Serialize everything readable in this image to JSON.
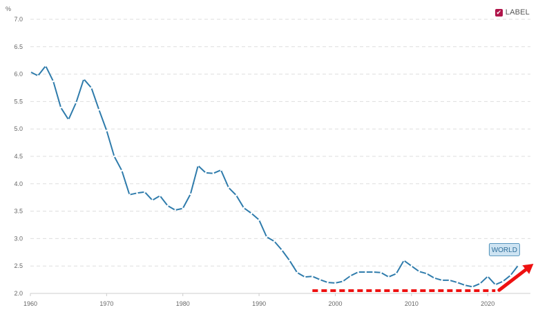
{
  "legend": {
    "label": "LABEL",
    "checked": true,
    "check_glyph": "✔"
  },
  "colors": {
    "line": "#2e7bab",
    "grid": "#dddddd",
    "callout_bg": "#cde3f2",
    "callout_border": "#2e7bab",
    "annotation": "#ee1111",
    "checkbox": "#b0154a"
  },
  "chart_data": {
    "type": "line",
    "unit_label": "%",
    "xlim": [
      1960,
      2024
    ],
    "ylim": [
      2.0,
      7.0
    ],
    "x_ticks": [
      1960,
      1970,
      1980,
      1990,
      2000,
      2010,
      2020
    ],
    "y_ticks": [
      "2.0",
      "2.5",
      "3.0",
      "3.5",
      "4.0",
      "4.5",
      "5.0",
      "5.5",
      "6.0",
      "6.5",
      "7.0"
    ],
    "grid": true,
    "series": [
      {
        "name": "WORLD",
        "x": [
          1960,
          1961,
          1962,
          1963,
          1964,
          1965,
          1966,
          1967,
          1968,
          1969,
          1970,
          1971,
          1972,
          1973,
          1974,
          1975,
          1976,
          1977,
          1978,
          1979,
          1980,
          1981,
          1982,
          1983,
          1984,
          1985,
          1986,
          1987,
          1988,
          1989,
          1990,
          1991,
          1992,
          1993,
          1994,
          1995,
          1996,
          1997,
          1998,
          1999,
          2000,
          2001,
          2002,
          2003,
          2004,
          2005,
          2006,
          2007,
          2008,
          2009,
          2010,
          2011,
          2012,
          2013,
          2014,
          2015,
          2016,
          2017,
          2018,
          2019,
          2020,
          2021,
          2022,
          2023,
          2024
        ],
        "y": [
          6.04,
          5.97,
          6.15,
          5.87,
          5.39,
          5.17,
          5.48,
          5.91,
          5.75,
          5.35,
          4.97,
          4.5,
          4.24,
          3.8,
          3.83,
          3.85,
          3.7,
          3.78,
          3.6,
          3.52,
          3.55,
          3.81,
          4.33,
          4.2,
          4.19,
          4.25,
          3.93,
          3.79,
          3.56,
          3.46,
          3.34,
          3.03,
          2.95,
          2.79,
          2.6,
          2.38,
          2.3,
          2.31,
          2.25,
          2.2,
          2.19,
          2.22,
          2.32,
          2.39,
          2.39,
          2.39,
          2.38,
          2.3,
          2.36,
          2.6,
          2.5,
          2.4,
          2.36,
          2.28,
          2.24,
          2.24,
          2.2,
          2.15,
          2.12,
          2.18,
          2.31,
          2.16,
          2.22,
          2.33,
          2.51
        ]
      }
    ],
    "annotations": {
      "series_callout": "WORLD",
      "dotted_line": {
        "x": [
          1997,
          2021
        ],
        "y": 2.05
      },
      "arrow": {
        "from": [
          2021.5,
          2.06
        ],
        "to": [
          2026,
          2.54
        ]
      }
    }
  }
}
